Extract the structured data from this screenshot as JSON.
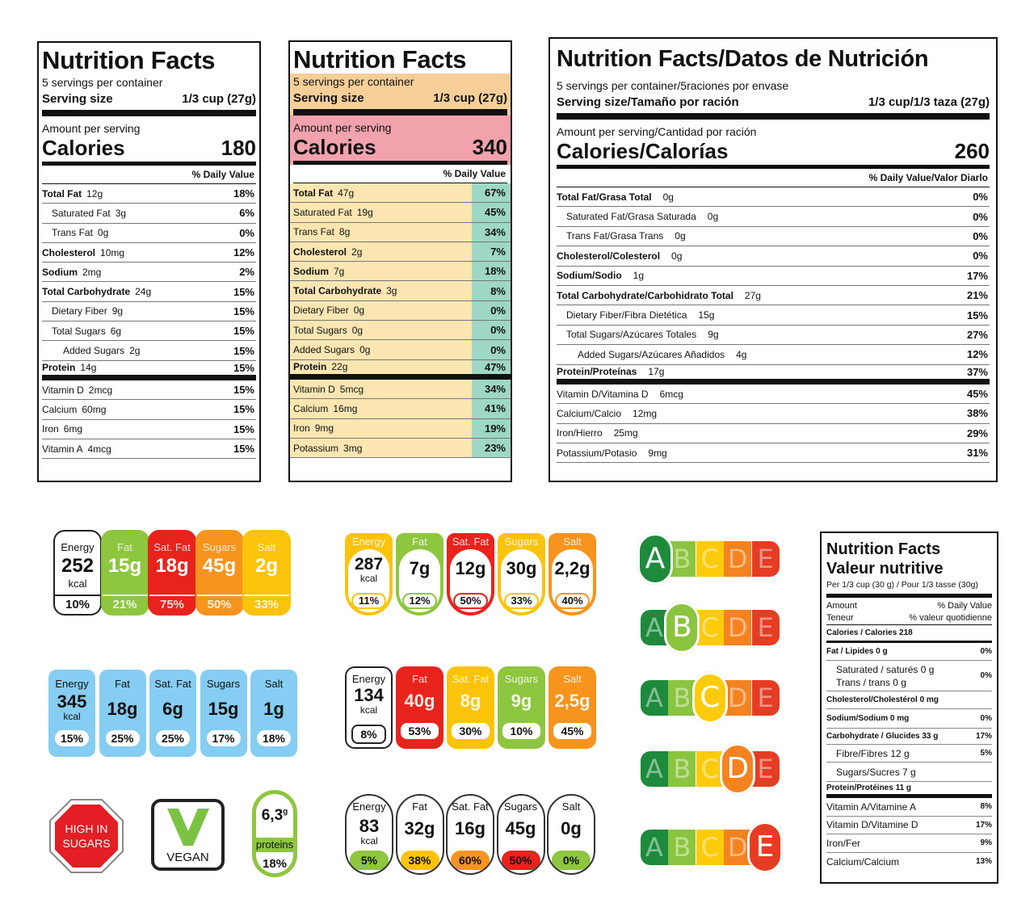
{
  "panel1": {
    "title": "Nutrition Facts",
    "servings": "5 servings per container",
    "serving_label": "Serving size",
    "serving_value": "1/3 cup (27g)",
    "amount": "Amount per serving",
    "calories_label": "Calories",
    "calories_value": "180",
    "dv_header": "% Daily Value",
    "rows": [
      {
        "name": "Total Fat",
        "amt": "12g",
        "pct": "18%"
      },
      {
        "name": "Saturated Fat",
        "amt": "3g",
        "pct": "6%"
      },
      {
        "name": "Trans Fat",
        "amt": "0g",
        "pct": "0%"
      },
      {
        "name": "Cholesterol",
        "amt": "10mg",
        "pct": "12%"
      },
      {
        "name": "Sodium",
        "amt": "2mg",
        "pct": "2%"
      },
      {
        "name": "Total Carbohydrate",
        "amt": "24g",
        "pct": "15%"
      },
      {
        "name": "Dietary Fiber",
        "amt": "9g",
        "pct": "15%"
      },
      {
        "name": "Total Sugars",
        "amt": "6g",
        "pct": "15%"
      },
      {
        "name": "Added Sugars",
        "amt": "2g",
        "pct": "15%"
      },
      {
        "name": "Protein",
        "amt": "14g",
        "pct": "15%"
      },
      {
        "name": "Vitamin D",
        "amt": "2mcg",
        "pct": "15%"
      },
      {
        "name": "Calcium",
        "amt": "60mg",
        "pct": "15%"
      },
      {
        "name": "Iron",
        "amt": "6mg",
        "pct": "15%"
      },
      {
        "name": "Vitamin A",
        "amt": "4mcg",
        "pct": "15%"
      }
    ]
  },
  "panel2": {
    "title": "Nutrition Facts",
    "servings": "5 servings per container",
    "serving_label": "Serving size",
    "serving_value": "1/3 cup (27g)",
    "amount": "Amount per serving",
    "calories_label": "Calories",
    "calories_value": "340",
    "dv_header": "% Daily Value",
    "rows": [
      {
        "name": "Total Fat",
        "amt": "47g",
        "pct": "67%"
      },
      {
        "name": "Saturated Fat",
        "amt": "19g",
        "pct": "45%"
      },
      {
        "name": "Trans Fat",
        "amt": "8g",
        "pct": "34%"
      },
      {
        "name": "Cholesterol",
        "amt": "2g",
        "pct": "7%"
      },
      {
        "name": "Sodium",
        "amt": "7g",
        "pct": "18%"
      },
      {
        "name": "Total Carbohydrate",
        "amt": "3g",
        "pct": "8%"
      },
      {
        "name": "Dietary Fiber",
        "amt": "0g",
        "pct": "0%"
      },
      {
        "name": "Total Sugars",
        "amt": "0g",
        "pct": "0%"
      },
      {
        "name": "Added Sugars",
        "amt": "0g",
        "pct": "0%"
      },
      {
        "name": "Protein",
        "amt": "22g",
        "pct": "47%"
      },
      {
        "name": "Vitamin D",
        "amt": "5mcg",
        "pct": "34%"
      },
      {
        "name": "Calcium",
        "amt": "16mg",
        "pct": "41%"
      },
      {
        "name": "Iron",
        "amt": "9mg",
        "pct": "19%"
      },
      {
        "name": "Potassium",
        "amt": "3mg",
        "pct": "23%"
      }
    ]
  },
  "panel3": {
    "title": "Nutrition Facts/Datos de Nutrición",
    "servings": "5 servings per container/5raciones por envase",
    "serving_label": "Serving size/Tamaño por ración",
    "serving_value": "1/3 cup/1/3 taza (27g)",
    "amount": "Amount per serving/Cantidad por ración",
    "calories_label": "Calories/Calorías",
    "calories_value": "260",
    "dv_header": "% Daily Value/Valor Diarlo",
    "rows": [
      {
        "name": "Total Fat/Grasa Total",
        "amt": "0g",
        "pct": "0%"
      },
      {
        "name": "Saturated Fat/Grasa Saturada",
        "amt": "0g",
        "pct": "0%"
      },
      {
        "name": "Trans Fat/Grasa Trans",
        "amt": "0g",
        "pct": "0%"
      },
      {
        "name": "Cholesterol/Colesterol",
        "amt": "0g",
        "pct": "0%"
      },
      {
        "name": "Sodium/Sodio",
        "amt": "1g",
        "pct": "17%"
      },
      {
        "name": "Total Carbohydrate/Carbohidrato Total",
        "amt": "27g",
        "pct": "21%"
      },
      {
        "name": "Dietary Fiber/Fibra Dietética",
        "amt": "15g",
        "pct": "15%"
      },
      {
        "name": "Total Sugars/Azúcares Totales",
        "amt": "9g",
        "pct": "27%"
      },
      {
        "name": "Added Sugars/Azúcares Añadidos",
        "amt": "4g",
        "pct": "12%"
      },
      {
        "name": "Protein/Proteínas",
        "amt": "17g",
        "pct": "37%"
      },
      {
        "name": "Vitamin D/Vitamina D",
        "amt": "6mcg",
        "pct": "45%"
      },
      {
        "name": "Calcium/Calcio",
        "amt": "12mg",
        "pct": "38%"
      },
      {
        "name": "Iron/Hierro",
        "amt": "25mg",
        "pct": "29%"
      },
      {
        "name": "Potassium/Potasio",
        "amt": "9mg",
        "pct": "31%"
      }
    ]
  },
  "gda1": [
    {
      "name": "Energy",
      "value": "252",
      "unit": "kcal",
      "pct": "10%",
      "color": "#ffffff"
    },
    {
      "name": "Fat",
      "value": "15g",
      "pct": "21%",
      "color": "#8ec63f"
    },
    {
      "name": "Sat. Fat",
      "value": "18g",
      "pct": "75%",
      "color": "#e8231c"
    },
    {
      "name": "Sugars",
      "value": "45g",
      "pct": "50%",
      "color": "#f7941d"
    },
    {
      "name": "Salt",
      "value": "2g",
      "pct": "33%",
      "color": "#fcc30b"
    }
  ],
  "gda2": [
    {
      "name": "Energy",
      "value": "287",
      "unit": "kcal",
      "pct": "11%",
      "color": "#fcc30b"
    },
    {
      "name": "Fat",
      "value": "7g",
      "pct": "12%",
      "color": "#8ec63f"
    },
    {
      "name": "Sat. Fat",
      "value": "12g",
      "pct": "50%",
      "color": "#e8231c"
    },
    {
      "name": "Sugars",
      "value": "30g",
      "pct": "33%",
      "color": "#fcc30b"
    },
    {
      "name": "Salt",
      "value": "2,2g",
      "pct": "40%",
      "color": "#f7941d"
    }
  ],
  "gda3": [
    {
      "name": "Energy",
      "value": "345",
      "unit": "kcal",
      "pct": "15%"
    },
    {
      "name": "Fat",
      "value": "18g",
      "pct": "25%"
    },
    {
      "name": "Sat. Fat",
      "value": "6g",
      "pct": "25%"
    },
    {
      "name": "Sugars",
      "value": "15g",
      "pct": "17%"
    },
    {
      "name": "Salt",
      "value": "1g",
      "pct": "18%"
    }
  ],
  "gda4": [
    {
      "name": "Energy",
      "value": "134",
      "unit": "kcal",
      "pct": "8%",
      "color": "#ffffff"
    },
    {
      "name": "Fat",
      "value": "40g",
      "pct": "53%",
      "color": "#e8231c"
    },
    {
      "name": "Sat. Fat",
      "value": "8g",
      "pct": "30%",
      "color": "#fcc30b"
    },
    {
      "name": "Sugars",
      "value": "9g",
      "pct": "10%",
      "color": "#8ec63f"
    },
    {
      "name": "Salt",
      "value": "2,5g",
      "pct": "45%",
      "color": "#f7941d"
    }
  ],
  "gda5": [
    {
      "name": "Energy",
      "value": "83",
      "unit": "kcal",
      "pct": "5%",
      "color": "#8ec63f"
    },
    {
      "name": "Fat",
      "value": "32g",
      "pct": "38%",
      "color": "#fcc30b"
    },
    {
      "name": "Sat. Fat",
      "value": "16g",
      "pct": "60%",
      "color": "#f7941d"
    },
    {
      "name": "Sugars",
      "value": "45g",
      "pct": "50%",
      "color": "#e8231c"
    },
    {
      "name": "Salt",
      "value": "0g",
      "pct": "0%",
      "color": "#8ec63f"
    }
  ],
  "badges": {
    "high_sugars_line1": "HIGH IN",
    "high_sugars_line2": "SUGARS",
    "vegan": "VEGAN",
    "protein_value": "6,3",
    "protein_unit": "g",
    "protein_label": "proteins",
    "protein_pct": "18%"
  },
  "nutriscore": {
    "letters": [
      "A",
      "B",
      "C",
      "D",
      "E"
    ],
    "colors": [
      "#1e8a3c",
      "#8bc43f",
      "#fdcb0a",
      "#f58220",
      "#e63c23"
    ],
    "grades": [
      "A",
      "B",
      "C",
      "D",
      "E"
    ]
  },
  "canada": {
    "title1": "Nutrition Facts",
    "title2": "Valeur nutritive",
    "per": "Per 1/3 cup (30 g) / Pour 1/3 tasse (30g)",
    "amount": "Amount",
    "teneur": "Teneur",
    "dv": "% Daily Value",
    "vq": "% valeur quotidienne",
    "calories": "Calories / Calories 218",
    "fat": "Fat / Lipides 0 g",
    "fat_pct": "0%",
    "sat": "Saturated / saturés 0 g",
    "trans": "Trans / trans 0 g",
    "sat_pct": "0%",
    "chol": "Cholesterol/Cholestérol 0 mg",
    "sodium": "Sodium/Sodium 0 mg",
    "sodium_pct": "0%",
    "carb": "Carbohydrate / Glucides 33 g",
    "carb_pct": "17%",
    "fibre": "Fibre/Fibres 12 g",
    "fibre_pct": "5%",
    "sugars": "Sugars/Sucres 7 g",
    "protein": "Protein/Protéines 11 g",
    "vits": [
      {
        "name": "Vitamin A/Vitamine A",
        "pct": "8%"
      },
      {
        "name": "Vitamin D/Vitamine D",
        "pct": "17%"
      },
      {
        "name": "Iron/Fer",
        "pct": "9%"
      },
      {
        "name": "Calcium/Calcium",
        "pct": "13%"
      }
    ]
  }
}
